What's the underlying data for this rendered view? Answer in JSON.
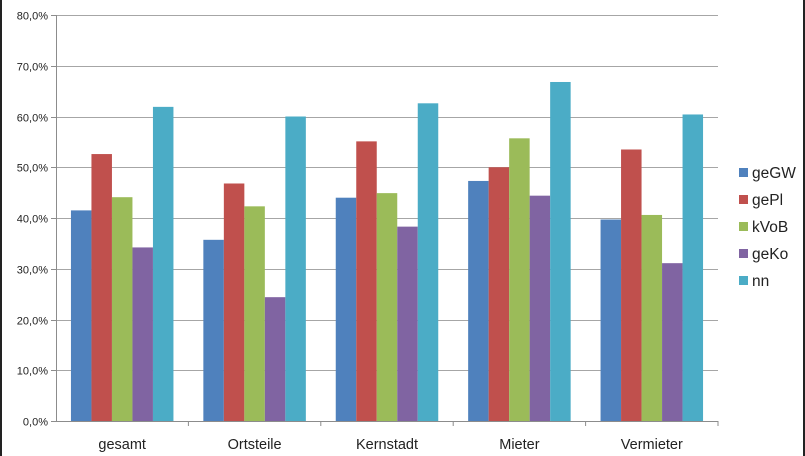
{
  "chart_data": {
    "type": "bar",
    "categories": [
      "gesamt",
      "Ortsteile",
      "Kernstadt",
      "Mieter",
      "Vermieter"
    ],
    "series": [
      {
        "name": "geGW",
        "color": "#4F81BD",
        "values": [
          41.5,
          35.7,
          44.0,
          47.3,
          39.7
        ]
      },
      {
        "name": "gePl",
        "color": "#C0504D",
        "values": [
          52.6,
          46.8,
          55.1,
          50.0,
          53.5
        ]
      },
      {
        "name": "kVoB",
        "color": "#9BBB59",
        "values": [
          44.1,
          42.3,
          44.9,
          55.7,
          40.6
        ]
      },
      {
        "name": "geKo",
        "color": "#8064A2",
        "values": [
          34.2,
          24.4,
          38.3,
          44.4,
          31.1
        ]
      },
      {
        "name": "nn",
        "color": "#4BACC6",
        "values": [
          61.9,
          60.0,
          62.6,
          66.8,
          60.4
        ]
      }
    ],
    "y_ticks": [
      "0,0%",
      "10,0%",
      "20,0%",
      "30,0%",
      "40,0%",
      "50,0%",
      "60,0%",
      "70,0%",
      "80,0%"
    ],
    "ylim": [
      0,
      80
    ],
    "y_tick_step": 10,
    "grid": true,
    "legend_position": "right",
    "title": "",
    "xlabel": "",
    "ylabel": ""
  }
}
